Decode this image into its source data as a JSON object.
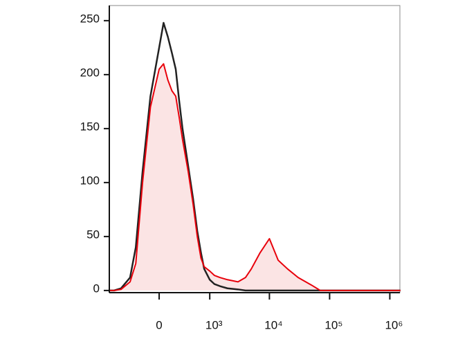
{
  "chart_data": {
    "type": "histogram-overlay",
    "x": [
      -1000,
      -800,
      -600,
      -400,
      -300,
      -200,
      -100,
      0,
      50,
      100,
      150,
      200,
      250,
      300,
      400,
      500,
      600,
      700,
      800,
      1000,
      1200,
      1500,
      2000,
      3000,
      4000,
      5000,
      7000,
      10000,
      14000,
      20000,
      30000,
      50000,
      70000,
      100000,
      200000,
      500000,
      1000000,
      1500000
    ],
    "series": [
      {
        "color": "#222222",
        "values": [
          0,
          0,
          2,
          12,
          40,
          110,
          180,
          225,
          248,
          235,
          220,
          205,
          175,
          150,
          115,
          85,
          55,
          35,
          20,
          10,
          6,
          4,
          2,
          1,
          0,
          0,
          0,
          0,
          0,
          0,
          0,
          0,
          0,
          0,
          0,
          0,
          0,
          0
        ]
      },
      {
        "color": "#e8000b",
        "fill": "#fbe4e4",
        "values": [
          0,
          0,
          1,
          8,
          25,
          100,
          170,
          205,
          210,
          195,
          185,
          180,
          160,
          140,
          110,
          80,
          50,
          30,
          22,
          18,
          14,
          12,
          10,
          8,
          12,
          20,
          35,
          48,
          28,
          20,
          12,
          5,
          0,
          0,
          0,
          0,
          0,
          0
        ]
      }
    ],
    "xlim": [
      -970,
      1470000
    ],
    "xticks": [
      0,
      {
        "value": 1000,
        "label": "10³"
      },
      {
        "value": 10000,
        "label": "10⁴"
      },
      {
        "value": 100000,
        "label": "10⁵"
      },
      {
        "value": 1000000,
        "label": "10⁶"
      }
    ],
    "ylim": [
      -2,
      264
    ],
    "yticks": [
      0,
      50,
      100,
      150,
      200,
      250
    ]
  }
}
